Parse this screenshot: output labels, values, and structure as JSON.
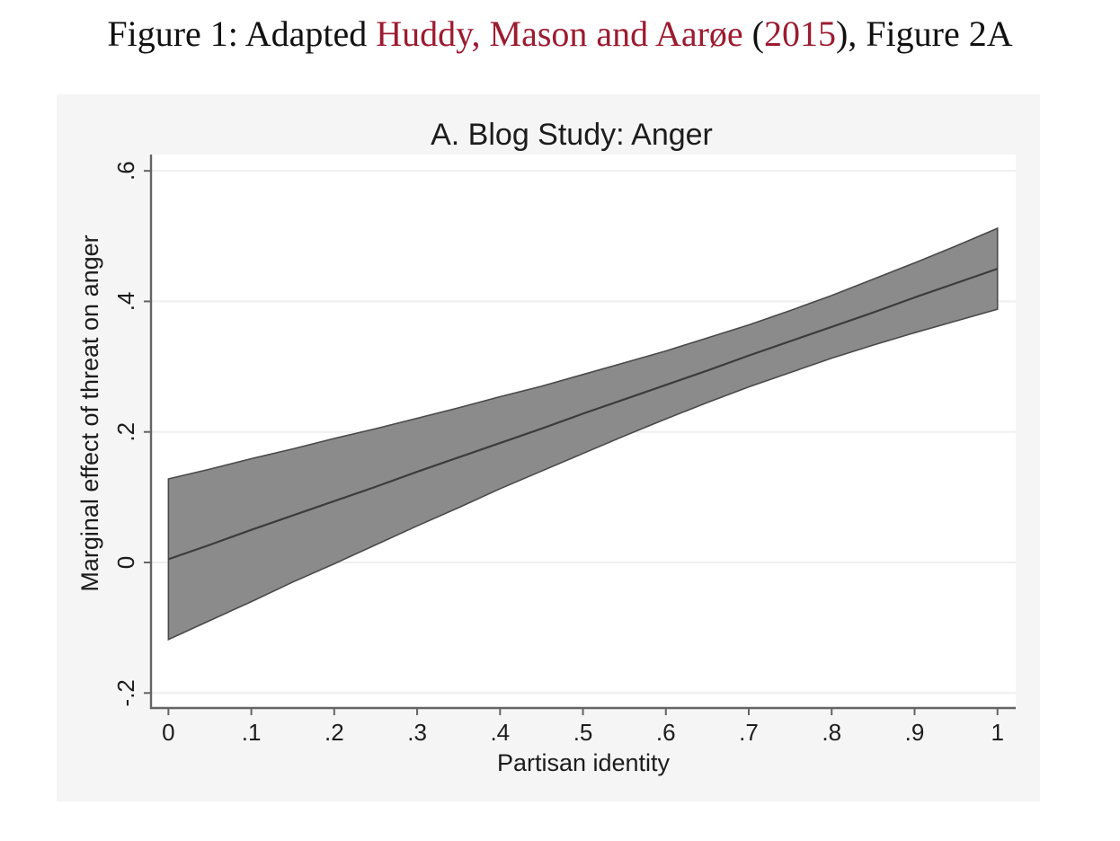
{
  "caption": {
    "prefix": "Figure 1: Adapted ",
    "citation_authors": "Huddy, Mason and Aarøe",
    "pre_year": " (",
    "citation_year": "2015",
    "suffix": "), Figure 2A",
    "link_color": "#9c1b30",
    "text_color": "#111111"
  },
  "chart_data": {
    "type": "area",
    "title": "A. Blog Study: Anger",
    "xlabel": "Partisan identity",
    "ylabel": "Marginal effect of threat on anger",
    "xlim": [
      -0.021,
      1.022
    ],
    "ylim": [
      -0.223,
      0.625
    ],
    "grid": "horizontal gridlines on, white plot area on light-gray graph region",
    "legend": "none",
    "xtick_values": [
      0,
      0.1,
      0.2,
      0.3,
      0.4,
      0.5,
      0.6,
      0.7,
      0.8,
      0.9,
      1
    ],
    "xtick_labels": [
      "0",
      ".1",
      ".2",
      ".3",
      ".4",
      ".5",
      ".6",
      ".7",
      ".8",
      ".9",
      "1"
    ],
    "ytick_values": [
      -0.2,
      0,
      0.2,
      0.4,
      0.6
    ],
    "ytick_labels": [
      "-.2",
      "0",
      ".2",
      ".4",
      ".6"
    ],
    "x": [
      0,
      0.05,
      0.1,
      0.15,
      0.2,
      0.25,
      0.3,
      0.35,
      0.4,
      0.45,
      0.5,
      0.55,
      0.6,
      0.65,
      0.7,
      0.75,
      0.8,
      0.85,
      0.9,
      0.95,
      1
    ],
    "effect": [
      0.005,
      0.027,
      0.05,
      0.072,
      0.094,
      0.116,
      0.139,
      0.161,
      0.183,
      0.205,
      0.228,
      0.25,
      0.272,
      0.294,
      0.317,
      0.339,
      0.361,
      0.383,
      0.406,
      0.428,
      0.45
    ],
    "ci_upper": [
      0.128,
      0.143,
      0.159,
      0.174,
      0.19,
      0.205,
      0.221,
      0.237,
      0.254,
      0.27,
      0.288,
      0.306,
      0.324,
      0.344,
      0.364,
      0.386,
      0.409,
      0.434,
      0.459,
      0.485,
      0.512
    ],
    "ci_lower": [
      -0.118,
      -0.089,
      -0.06,
      -0.03,
      -0.002,
      0.027,
      0.056,
      0.084,
      0.113,
      0.14,
      0.167,
      0.194,
      0.22,
      0.245,
      0.269,
      0.291,
      0.313,
      0.333,
      0.352,
      0.37,
      0.388
    ],
    "colors": {
      "figure_background": "#f5f5f5",
      "plot_background": "#ffffff",
      "gridline": "#efefef",
      "axis_line": "#646464",
      "band_fill": "#8b8b8b",
      "band_edge": "#494949",
      "effect_line": "#3c3c3c",
      "text": "#1c1c1c"
    }
  }
}
